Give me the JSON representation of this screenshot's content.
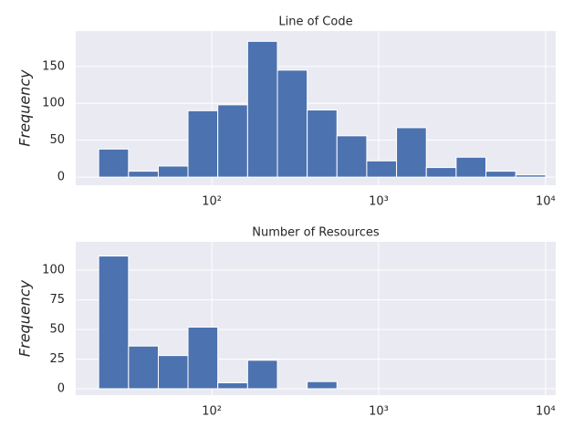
{
  "chart_data": [
    {
      "type": "histogram",
      "title": "Line of Code",
      "ylabel": "Frequency",
      "bins": [
        21,
        31.7,
        47.8,
        72,
        108.6,
        163.9,
        247.2,
        372.9,
        562.3,
        848.1,
        1279,
        1930,
        2911,
        4390,
        6622,
        10000
      ],
      "values": [
        38,
        8,
        15,
        90,
        98,
        184,
        145,
        91,
        56,
        22,
        67,
        13,
        27,
        8,
        3
      ],
      "color": "#4c72b0",
      "xscale": "log",
      "xlim": [
        15.3,
        11500
      ],
      "xticks": [
        {
          "value": 100,
          "label": "10²"
        },
        {
          "value": 1000,
          "label": "10³"
        },
        {
          "value": 10000,
          "label": "10⁴"
        }
      ],
      "ylim": [
        -11,
        198
      ],
      "yticks": [
        0,
        50,
        100,
        150
      ],
      "grid": true
    },
    {
      "type": "histogram",
      "title": "Number of Resources",
      "ylabel": "Frequency",
      "bins": [
        21,
        31.7,
        47.8,
        72,
        108.6,
        163.9,
        247.2,
        372.9,
        562.3,
        848.1,
        1279,
        1930,
        2911,
        4390,
        6622,
        10000
      ],
      "values": [
        112,
        36,
        28,
        52,
        5,
        24,
        0,
        6,
        0,
        0,
        0,
        0,
        0,
        0,
        0
      ],
      "color": "#4c72b0",
      "xscale": "log",
      "xlim": [
        15.3,
        11500
      ],
      "xticks": [
        {
          "value": 100,
          "label": "10²"
        },
        {
          "value": 1000,
          "label": "10³"
        },
        {
          "value": 10000,
          "label": "10⁴"
        }
      ],
      "ylim": [
        -5.4,
        124
      ],
      "yticks": [
        0,
        25,
        50,
        75,
        100
      ],
      "grid": true
    }
  ]
}
